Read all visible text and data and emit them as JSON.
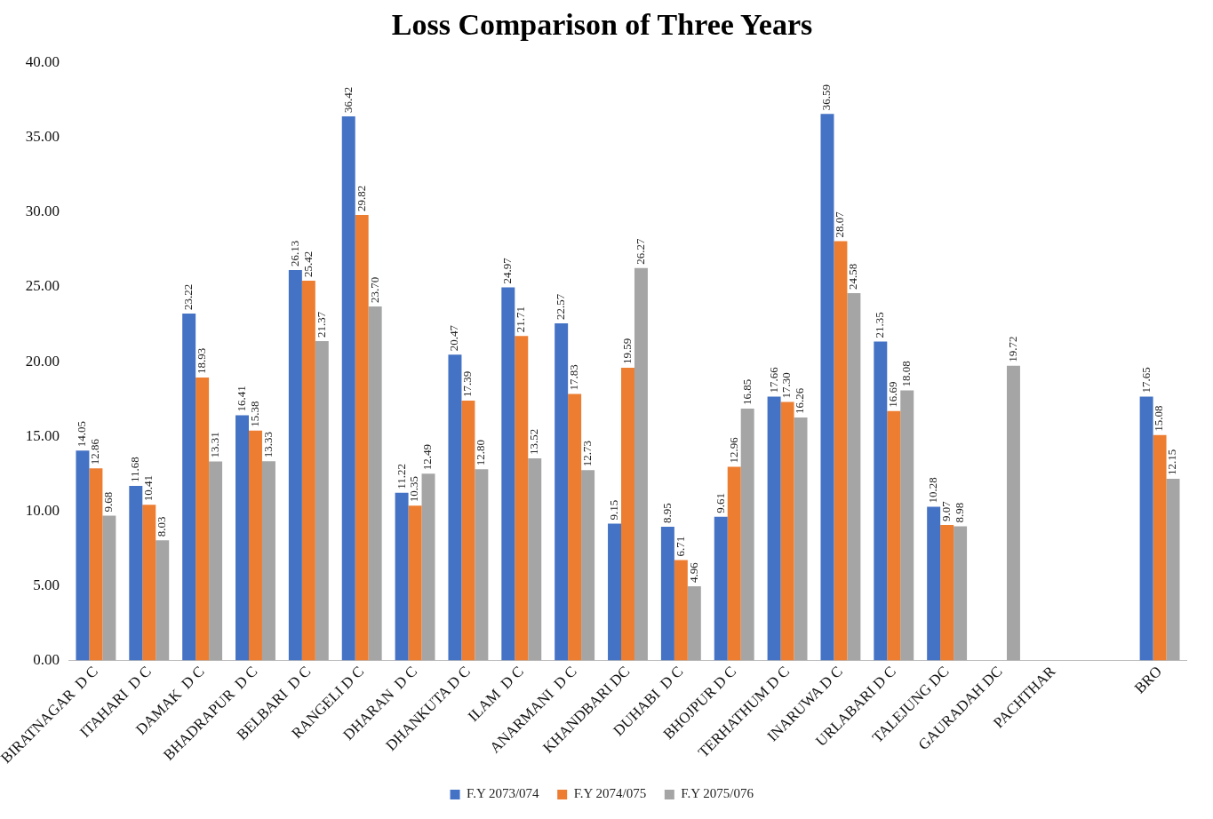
{
  "chart_data": {
    "type": "bar",
    "title": "Loss Comparison of Three Years",
    "categories": [
      "BIRATNAGAR  D C",
      "ITAHARI  D C",
      "DAMAK  D C",
      "BHADRAPUR  D C",
      "BELBARI  D C",
      "RANGELI D C",
      "DHARAN  D C",
      "DHANKUTA D C",
      "ILAM  D C",
      "ANARMANI  D C",
      "KHANDBARI DC",
      "DUHABI  D C",
      "BHOJPUR D C",
      "TERHATHUM D C",
      "INARUWA D C",
      "URLABARI D C",
      "TALEJUNG DC",
      "GAURADAH DC",
      "PACHTHAR",
      null,
      "BRO"
    ],
    "series": [
      {
        "name": "F.Y 2073/074",
        "color": "#4472c4",
        "values": [
          14.05,
          11.68,
          23.22,
          16.41,
          26.13,
          36.42,
          11.22,
          20.47,
          24.97,
          22.57,
          9.15,
          8.95,
          9.61,
          17.66,
          36.59,
          21.35,
          10.28,
          null,
          null,
          null,
          17.65
        ],
        "value_labels": [
          "14.05",
          "11.68",
          "23.22",
          "16.41",
          "26.13",
          "36.42",
          "11.22",
          "20.47",
          "24.97",
          "22.57",
          "9.15",
          "8.95",
          "9.61",
          "17.66",
          "36.59",
          "21.35",
          "10.28",
          null,
          null,
          null,
          "17.65"
        ]
      },
      {
        "name": "F.Y 2074/075",
        "color": "#ed7d31",
        "values": [
          12.86,
          10.41,
          18.93,
          15.38,
          25.42,
          29.82,
          10.35,
          17.39,
          21.71,
          17.83,
          19.59,
          6.71,
          12.96,
          17.3,
          28.07,
          16.69,
          9.07,
          null,
          null,
          null,
          15.08
        ],
        "value_labels": [
          "12.86",
          "10.41",
          "18.93",
          "15.38",
          "25.42",
          "29.82",
          "10.35",
          "17.39",
          "21.71",
          "17.83",
          "19.59",
          "6.71",
          "12.96",
          "17.30",
          "28.07",
          "16.69",
          "9.07",
          null,
          null,
          null,
          "15.08"
        ]
      },
      {
        "name": "F.Y 2075/076",
        "color": "#a5a5a5",
        "values": [
          9.68,
          8.03,
          13.31,
          13.33,
          21.37,
          23.7,
          12.49,
          12.8,
          13.52,
          12.73,
          26.27,
          4.96,
          16.85,
          16.26,
          24.58,
          18.08,
          8.98,
          19.72,
          null,
          null,
          12.15
        ],
        "value_labels": [
          "9.68",
          "8.03",
          "13.31",
          "13.33",
          "21.37",
          "23.70",
          "12.49",
          "12.80",
          "13.52",
          "12.73",
          "26.27",
          "4.96",
          "16.85",
          "16.26",
          "24.58",
          "18.08",
          "8.98",
          "19.72",
          null,
          null,
          "12.15"
        ]
      }
    ],
    "ylim": [
      0,
      40
    ],
    "yticks": [
      {
        "value": 0,
        "label": "0.00"
      },
      {
        "value": 5,
        "label": "5.00"
      },
      {
        "value": 10,
        "label": "10.00"
      },
      {
        "value": 15,
        "label": "15.00"
      },
      {
        "value": 20,
        "label": "20.00"
      },
      {
        "value": 25,
        "label": "25.00"
      },
      {
        "value": 30,
        "label": "30.00"
      },
      {
        "value": 35,
        "label": "35.00"
      },
      {
        "value": 40,
        "label": "40.00"
      }
    ],
    "legend": "bottom"
  }
}
